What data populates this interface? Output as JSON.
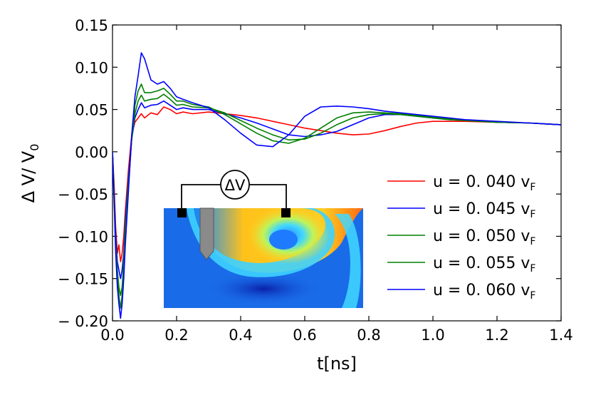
{
  "chart_data": {
    "type": "line",
    "title": "",
    "xlabel": "t[ns]",
    "ylabel": "Δ V/ V",
    "ylabel_sub": "0",
    "xlim": [
      0.0,
      1.4
    ],
    "ylim": [
      -0.2,
      0.15
    ],
    "x_ticks": [
      0.0,
      0.2,
      0.4,
      0.6,
      0.8,
      1.0,
      1.2,
      1.4
    ],
    "x_tick_labels": [
      "0.0",
      "0.2",
      "0.4",
      "0.6",
      "0.8",
      "1.0",
      "1.2",
      "1.4"
    ],
    "y_ticks": [
      0.15,
      0.1,
      0.05,
      0.0,
      -0.05,
      -0.1,
      -0.15,
      -0.2
    ],
    "y_tick_labels": [
      "0.15",
      "0.10",
      "0.05",
      "0.00",
      "− 0.05",
      "− 0.10",
      "− 0.15",
      "− 0.20"
    ],
    "grid": false,
    "legend_position": "right",
    "series": [
      {
        "name": "u = 0. 040",
        "name_sub": "F",
        "name_v": "v",
        "color": "#ff0000",
        "x": [
          0.0,
          0.005,
          0.01,
          0.015,
          0.02,
          0.025,
          0.03,
          0.035,
          0.04,
          0.05,
          0.06,
          0.07,
          0.08,
          0.09,
          0.1,
          0.12,
          0.14,
          0.16,
          0.18,
          0.2,
          0.22,
          0.25,
          0.3,
          0.35,
          0.4,
          0.45,
          0.5,
          0.55,
          0.6,
          0.65,
          0.7,
          0.75,
          0.8,
          0.85,
          0.9,
          0.95,
          1.0,
          1.05,
          1.1,
          1.2,
          1.3,
          1.4
        ],
        "y": [
          0.0,
          -0.04,
          -0.09,
          -0.12,
          -0.11,
          -0.13,
          -0.12,
          -0.1,
          -0.07,
          -0.02,
          0.02,
          0.035,
          0.04,
          0.045,
          0.04,
          0.046,
          0.044,
          0.053,
          0.05,
          0.045,
          0.047,
          0.045,
          0.047,
          0.045,
          0.043,
          0.04,
          0.036,
          0.032,
          0.028,
          0.025,
          0.022,
          0.02,
          0.021,
          0.025,
          0.03,
          0.034,
          0.036,
          0.036,
          0.036,
          0.035,
          0.034,
          0.032
        ]
      },
      {
        "name": "u = 0. 045",
        "name_sub": "F",
        "name_v": "v",
        "color": "#0000ff",
        "x": [
          0.0,
          0.005,
          0.01,
          0.015,
          0.02,
          0.025,
          0.03,
          0.035,
          0.04,
          0.05,
          0.06,
          0.07,
          0.08,
          0.09,
          0.1,
          0.12,
          0.14,
          0.16,
          0.18,
          0.2,
          0.22,
          0.25,
          0.3,
          0.35,
          0.4,
          0.45,
          0.5,
          0.55,
          0.6,
          0.65,
          0.7,
          0.75,
          0.8,
          0.85,
          0.9,
          0.95,
          1.0,
          1.05,
          1.1,
          1.2,
          1.3,
          1.4
        ],
        "y": [
          0.0,
          -0.05,
          -0.1,
          -0.13,
          -0.14,
          -0.15,
          -0.14,
          -0.12,
          -0.08,
          -0.03,
          0.015,
          0.04,
          0.05,
          0.058,
          0.052,
          0.055,
          0.056,
          0.06,
          0.055,
          0.05,
          0.052,
          0.05,
          0.05,
          0.045,
          0.04,
          0.034,
          0.027,
          0.02,
          0.018,
          0.02,
          0.024,
          0.032,
          0.04,
          0.044,
          0.044,
          0.042,
          0.04,
          0.038,
          0.037,
          0.035,
          0.034,
          0.032
        ]
      },
      {
        "name": "u = 0. 050",
        "name_sub": "F",
        "name_v": "v",
        "color": "#008000",
        "x": [
          0.0,
          0.005,
          0.01,
          0.015,
          0.02,
          0.025,
          0.03,
          0.035,
          0.04,
          0.05,
          0.06,
          0.07,
          0.08,
          0.09,
          0.1,
          0.12,
          0.14,
          0.16,
          0.18,
          0.2,
          0.22,
          0.25,
          0.3,
          0.35,
          0.4,
          0.45,
          0.5,
          0.55,
          0.6,
          0.65,
          0.7,
          0.75,
          0.8,
          0.85,
          0.9,
          0.95,
          1.0,
          1.05,
          1.1,
          1.2,
          1.3,
          1.4
        ],
        "y": [
          0.0,
          -0.05,
          -0.11,
          -0.14,
          -0.16,
          -0.17,
          -0.16,
          -0.13,
          -0.09,
          -0.035,
          0.015,
          0.045,
          0.06,
          0.067,
          0.06,
          0.062,
          0.063,
          0.068,
          0.062,
          0.055,
          0.056,
          0.053,
          0.052,
          0.046,
          0.037,
          0.028,
          0.02,
          0.014,
          0.015,
          0.022,
          0.032,
          0.04,
          0.044,
          0.045,
          0.044,
          0.042,
          0.04,
          0.038,
          0.037,
          0.035,
          0.034,
          0.032
        ]
      },
      {
        "name": "u = 0. 055",
        "name_sub": "F",
        "name_v": "v",
        "color": "#008000",
        "x": [
          0.0,
          0.005,
          0.01,
          0.015,
          0.02,
          0.025,
          0.03,
          0.035,
          0.04,
          0.05,
          0.06,
          0.07,
          0.08,
          0.09,
          0.1,
          0.12,
          0.14,
          0.16,
          0.18,
          0.2,
          0.22,
          0.25,
          0.3,
          0.35,
          0.4,
          0.45,
          0.5,
          0.55,
          0.6,
          0.65,
          0.7,
          0.75,
          0.8,
          0.85,
          0.9,
          0.95,
          1.0,
          1.05,
          1.1,
          1.2,
          1.3,
          1.4
        ],
        "y": [
          0.0,
          -0.055,
          -0.115,
          -0.15,
          -0.17,
          -0.185,
          -0.17,
          -0.14,
          -0.1,
          -0.04,
          0.015,
          0.055,
          0.072,
          0.08,
          0.07,
          0.07,
          0.072,
          0.075,
          0.068,
          0.06,
          0.06,
          0.056,
          0.053,
          0.044,
          0.033,
          0.022,
          0.013,
          0.01,
          0.016,
          0.028,
          0.04,
          0.046,
          0.047,
          0.046,
          0.045,
          0.043,
          0.041,
          0.039,
          0.037,
          0.035,
          0.034,
          0.032
        ]
      },
      {
        "name": "u = 0. 060",
        "name_sub": "F",
        "name_v": "v",
        "color": "#0000ff",
        "x": [
          0.0,
          0.005,
          0.01,
          0.015,
          0.02,
          0.025,
          0.03,
          0.035,
          0.04,
          0.05,
          0.06,
          0.07,
          0.08,
          0.09,
          0.1,
          0.12,
          0.14,
          0.16,
          0.18,
          0.2,
          0.22,
          0.25,
          0.3,
          0.35,
          0.4,
          0.45,
          0.5,
          0.55,
          0.6,
          0.65,
          0.7,
          0.75,
          0.8,
          0.85,
          0.9,
          0.95,
          1.0,
          1.05,
          1.1,
          1.2,
          1.3,
          1.4
        ],
        "y": [
          0.0,
          -0.06,
          -0.12,
          -0.16,
          -0.18,
          -0.197,
          -0.18,
          -0.15,
          -0.11,
          -0.045,
          0.02,
          0.065,
          0.09,
          0.117,
          0.11,
          0.085,
          0.08,
          0.083,
          0.075,
          0.065,
          0.062,
          0.058,
          0.052,
          0.038,
          0.022,
          0.008,
          0.006,
          0.02,
          0.042,
          0.053,
          0.054,
          0.053,
          0.051,
          0.048,
          0.046,
          0.044,
          0.042,
          0.04,
          0.038,
          0.036,
          0.034,
          0.032
        ]
      }
    ],
    "inset": {
      "label": "ΔV"
    }
  }
}
